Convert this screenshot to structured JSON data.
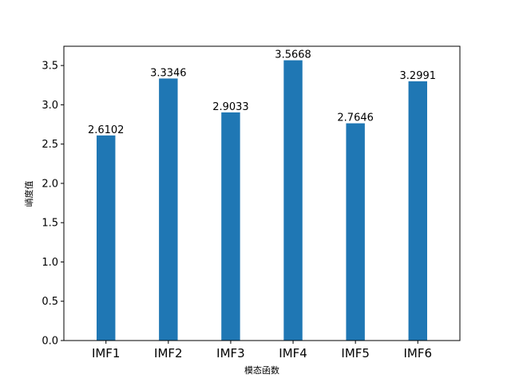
{
  "chart_data": {
    "type": "bar",
    "categories": [
      "IMF1",
      "IMF2",
      "IMF3",
      "IMF4",
      "IMF5",
      "IMF6"
    ],
    "values": [
      2.6102,
      3.3346,
      2.9033,
      3.5668,
      2.7646,
      3.2991
    ],
    "data_labels": [
      "2.6102",
      "3.3346",
      "2.9033",
      "3.5668",
      "2.7646",
      "3.2991"
    ],
    "title": "",
    "xlabel": "模态函数",
    "ylabel": "峭度值",
    "ylim": [
      0,
      3.745
    ],
    "yticks": [
      0.0,
      0.5,
      1.0,
      1.5,
      2.0,
      2.5,
      3.0,
      3.5
    ],
    "ytick_labels": [
      "0.0",
      "0.5",
      "1.0",
      "1.5",
      "2.0",
      "2.5",
      "3.0",
      "3.5"
    ],
    "bar_color": "#1f77b4",
    "grid": false,
    "legend": "none"
  }
}
